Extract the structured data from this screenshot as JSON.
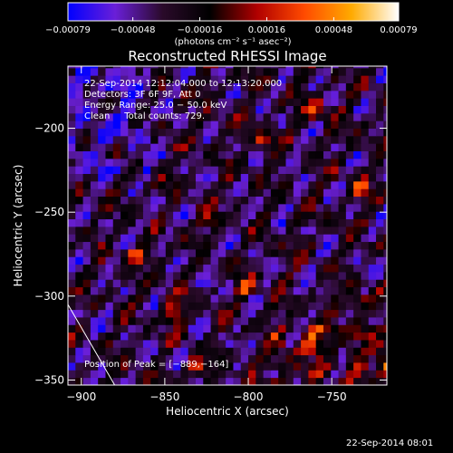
{
  "chart_data": {
    "type": "heatmap",
    "title": "Reconstructed RHESSI Image",
    "xlabel": "Heliocentric X (arcsec)",
    "ylabel": "Heliocentric Y (arcsec)",
    "xlim": [
      -908,
      -717
    ],
    "ylim": [
      -353,
      -163
    ],
    "x_ticks": [
      -900,
      -850,
      -800,
      -750
    ],
    "x_tick_labels": [
      "−900",
      "−850",
      "−800",
      "−750"
    ],
    "y_ticks": [
      -200,
      -250,
      -300,
      -350
    ],
    "y_tick_labels": [
      "−200",
      "−250",
      "−300",
      "−350"
    ],
    "colorbar": {
      "range": [
        -0.00079,
        0.00079
      ],
      "ticks": [
        -0.00079,
        -0.00048,
        -0.00016,
        0.00016,
        0.00048,
        0.00079
      ],
      "tick_labels": [
        "−0.00079",
        "−0.00048",
        "−0.00016",
        "0.00016",
        "0.00048",
        "0.00079"
      ],
      "unit_label": "(photons cm⁻² s⁻¹ asec⁻²)",
      "colors": [
        "#0000ff",
        "#6a1fd8",
        "#2a0a2a",
        "#000000",
        "#b00000",
        "#ff4a00",
        "#ffaa00",
        "#ffffff"
      ]
    },
    "annotations": {
      "time": "22-Sep-2014 12:12:04.000 to 12:13:20.000",
      "detectors": "Detectors: 3F 6F 9F, Att 0",
      "energy": "Energy Range: 25.0 − 50.0 keV",
      "clean": "Clean     Total counts: 729.",
      "peak": "Position of Peak = [−889,−164]"
    },
    "peak_position": [
      -889,
      -164
    ],
    "limb_curve": [
      [
        -908,
        -305
      ],
      [
        -880,
        -353
      ]
    ],
    "bright_sources": [
      {
        "x": -847,
        "y": -313,
        "value": 0.00072
      },
      {
        "x": -804,
        "y": -297,
        "value": 0.00065
      },
      {
        "x": -764,
        "y": -326,
        "value": 0.0007
      },
      {
        "x": -737,
        "y": -305,
        "value": 0.0006
      },
      {
        "x": -793,
        "y": -209,
        "value": 0.00055
      },
      {
        "x": -763,
        "y": -190,
        "value": 0.00058
      },
      {
        "x": -880,
        "y": -215,
        "value": 0.0005
      },
      {
        "x": -833,
        "y": -344,
        "value": 0.00062
      },
      {
        "x": -735,
        "y": -238,
        "value": 0.00048
      },
      {
        "x": -870,
        "y": -277,
        "value": 0.00052
      },
      {
        "x": -827,
        "y": -257,
        "value": 0.00045
      },
      {
        "x": -720,
        "y": -345,
        "value": 0.00066
      }
    ]
  },
  "footer": {
    "timestamp": "22-Sep-2014 08:01"
  }
}
